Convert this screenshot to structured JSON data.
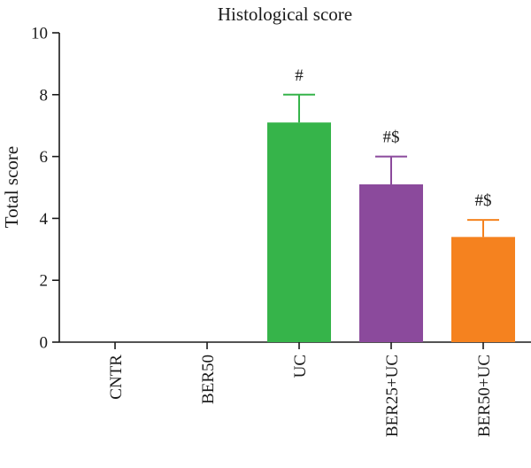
{
  "chart_data": {
    "type": "bar",
    "title": "Histological score",
    "xlabel": "",
    "ylabel": "Total score",
    "ylim": [
      0,
      10
    ],
    "yticks": [
      0,
      2,
      4,
      6,
      8,
      10
    ],
    "grid": false,
    "legend": "none",
    "categories": [
      "CNTR",
      "BER50",
      "UC",
      "BER25+UC",
      "BER50+UC"
    ],
    "values": [
      0,
      0,
      7.1,
      5.1,
      3.4
    ],
    "error_plus": [
      0,
      0,
      0.9,
      0.9,
      0.55
    ],
    "annotations": [
      "",
      "",
      "#",
      "#$",
      "#$"
    ],
    "colors": [
      "#8a8a8a",
      "#8a8a8a",
      "#36b44a",
      "#8b4a9c",
      "#f5821f"
    ]
  }
}
